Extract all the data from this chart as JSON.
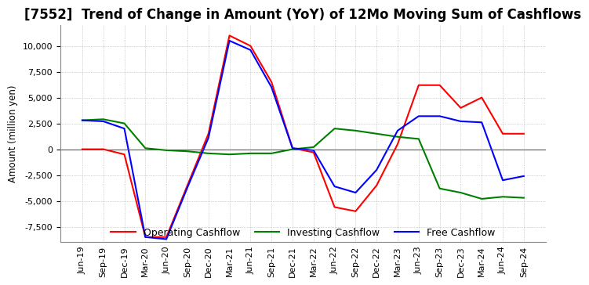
{
  "title": "[7552]  Trend of Change in Amount (YoY) of 12Mo Moving Sum of Cashflows",
  "ylabel": "Amount (million yen)",
  "ylim": [
    -9000,
    12000
  ],
  "yticks": [
    -7500,
    -5000,
    -2500,
    0,
    2500,
    5000,
    7500,
    10000
  ],
  "x_labels": [
    "Jun-19",
    "Sep-19",
    "Dec-19",
    "Mar-20",
    "Jun-20",
    "Sep-20",
    "Dec-20",
    "Mar-21",
    "Jun-21",
    "Sep-21",
    "Dec-21",
    "Mar-22",
    "Jun-22",
    "Sep-22",
    "Dec-22",
    "Mar-23",
    "Jun-23",
    "Sep-23",
    "Dec-23",
    "Mar-24",
    "Jun-24",
    "Sep-24"
  ],
  "operating": [
    0,
    0,
    -500,
    -8500,
    -8500,
    -3500,
    1500,
    11000,
    10000,
    6500,
    100,
    -300,
    -5600,
    -6000,
    -3500,
    500,
    6200,
    6200,
    4000,
    5000,
    1500,
    1500
  ],
  "investing": [
    2800,
    2900,
    2500,
    100,
    -100,
    -200,
    -400,
    -500,
    -400,
    -400,
    0,
    200,
    2000,
    1800,
    1500,
    1200,
    1000,
    -3800,
    -4200,
    -4800,
    -4600,
    -4700
  ],
  "free": [
    2800,
    2700,
    2000,
    -8500,
    -8700,
    -3700,
    1100,
    10500,
    9600,
    6000,
    100,
    -100,
    -3600,
    -4200,
    -2000,
    1800,
    3200,
    3200,
    2700,
    2600,
    -3000,
    -2600
  ],
  "operating_color": "#ff0000",
  "investing_color": "#008000",
  "free_color": "#0000ff",
  "background_color": "#ffffff",
  "grid_color": "#aaaaaa",
  "title_fontsize": 12,
  "legend_fontsize": 9,
  "tick_fontsize": 8
}
